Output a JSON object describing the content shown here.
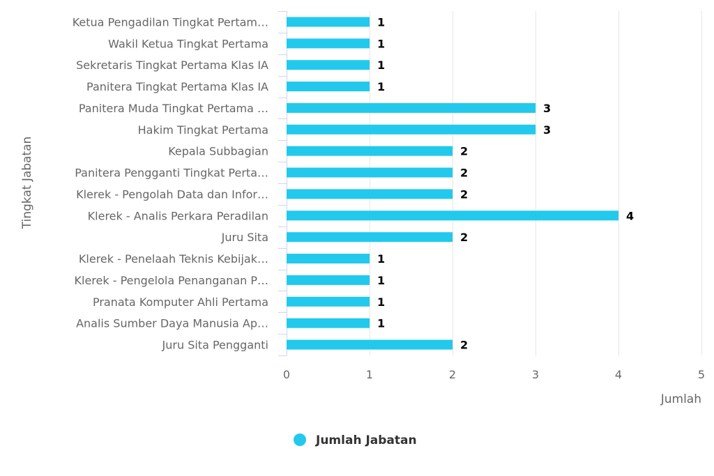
{
  "chart_data": {
    "type": "bar",
    "orientation": "horizontal",
    "categories": [
      "Ketua Pengadilan Tingkat Pertam…",
      "Wakil Ketua Tingkat Pertama",
      "Sekretaris Tingkat Pertama Klas IA",
      "Panitera Tingkat Pertama Klas IA",
      "Panitera Muda Tingkat Pertama …",
      "Hakim Tingkat Pertama",
      "Kepala Subbagian",
      "Panitera Pengganti Tingkat Perta…",
      "Klerek - Pengolah Data dan Infor…",
      "Klerek - Analis Perkara Peradilan",
      "Juru Sita",
      "Klerek - Penelaah Teknis Kebijak…",
      "Klerek - Pengelola Penanganan P…",
      "Pranata Komputer Ahli Pertama",
      "Analis Sumber Daya Manusia Ap…",
      "Juru Sita Pengganti"
    ],
    "series": [
      {
        "name": "Jumlah Jabatan",
        "color": "#22c9ec",
        "values": [
          1,
          1,
          1,
          1,
          3,
          3,
          2,
          2,
          2,
          4,
          2,
          1,
          1,
          1,
          1,
          2
        ]
      }
    ],
    "xlabel": "Jumlah",
    "ylabel": "Tingkat Jabatan",
    "xlim": [
      0,
      5
    ],
    "xticks": [
      "0",
      "1",
      "2",
      "3",
      "4",
      "5"
    ],
    "grid": true,
    "legend_position": "bottom-center",
    "data_labels": true
  }
}
